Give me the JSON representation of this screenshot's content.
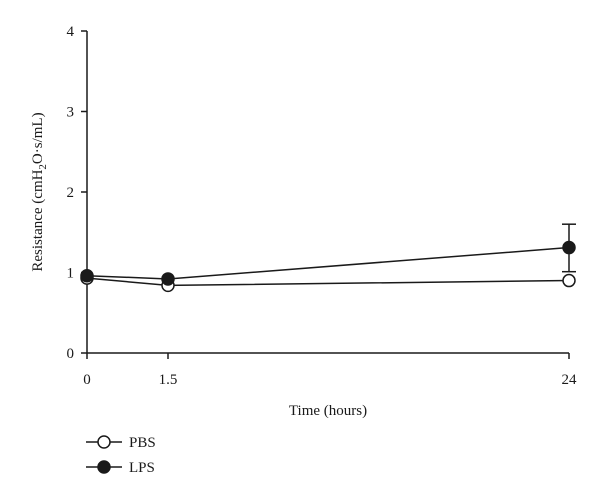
{
  "chart_data": {
    "type": "line",
    "title": "",
    "xlabel": "Time (hours)",
    "ylabel": "Resistance (cmH2O·s/mL)",
    "ylabel_parts": {
      "prefix": "Resistance (cmH",
      "subscript": "2",
      "suffix": "O·s/mL)"
    },
    "xlim": [
      0,
      24
    ],
    "ylim": [
      0,
      4
    ],
    "x_ticks": [
      0,
      1.5,
      24
    ],
    "x_tick_labels": [
      "0",
      "1.5",
      "24"
    ],
    "y_ticks": [
      0,
      1,
      2,
      3,
      4
    ],
    "y_tick_labels": [
      "0",
      "1",
      "2",
      "3",
      "4"
    ],
    "grid": false,
    "legend_position": "bottom-left",
    "series": [
      {
        "name": "PBS",
        "marker": "open-circle",
        "color": "#1a1a1a",
        "points": [
          {
            "x": 0,
            "y": 0.93
          },
          {
            "x": 1.5,
            "y": 0.84
          },
          {
            "x": 24,
            "y": 0.9
          }
        ]
      },
      {
        "name": "LPS",
        "marker": "filled-circle",
        "color": "#1a1a1a",
        "points": [
          {
            "x": 0,
            "y": 0.96
          },
          {
            "x": 1.5,
            "y": 0.92
          },
          {
            "x": 24,
            "y": 1.31,
            "err_low": 1.01,
            "err_high": 1.6
          }
        ]
      }
    ]
  }
}
